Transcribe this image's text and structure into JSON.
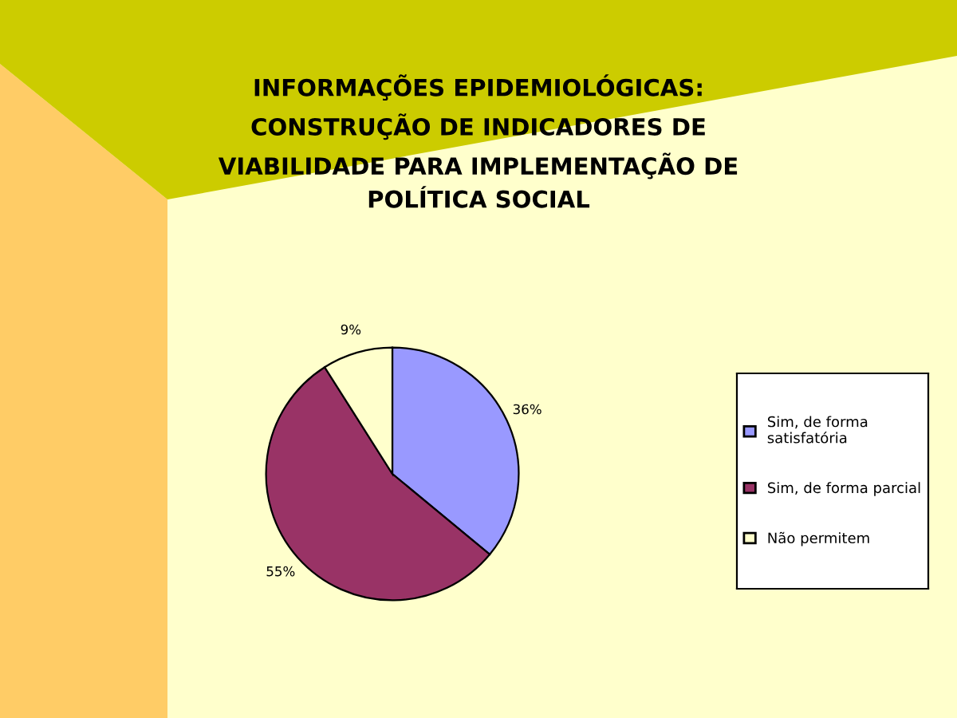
{
  "chart_data": {
    "type": "pie",
    "title": "INFORMAÇÕES EPIDEMIOLÓGICAS:\nCONSTRUÇÃO DE INDICADORES DE\nVIABILIDADE PARA IMPLEMENTAÇÃO DE\nPOLÍTICA SOCIAL",
    "categories": [
      "Sim, de forma satisfatória",
      "Sim, de forma parcial",
      "Não permitem"
    ],
    "values": [
      36,
      55,
      9
    ],
    "value_labels": [
      "36%",
      "55%",
      "9%"
    ],
    "colors": [
      "#9999ff",
      "#993366",
      "#ffffcc"
    ],
    "legend": "right"
  }
}
